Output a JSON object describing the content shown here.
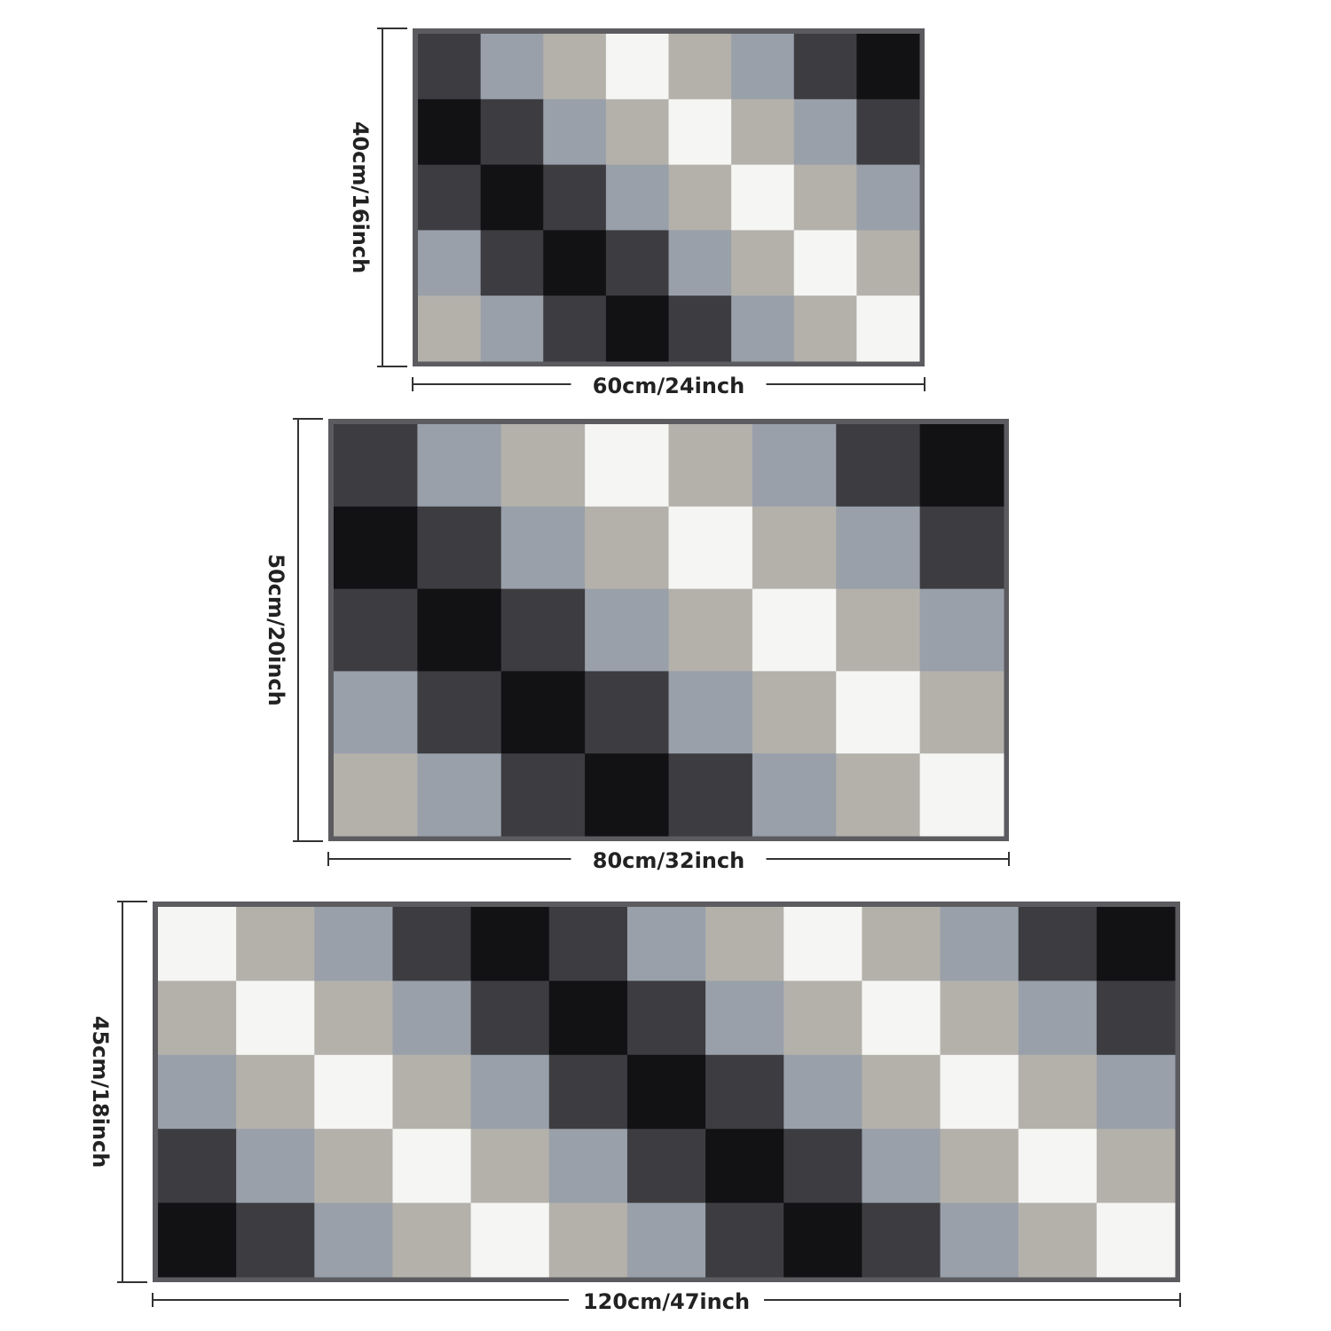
{
  "rugs": [
    {
      "height_label": "40cm/16inch",
      "width_label": "60cm/24inch"
    },
    {
      "height_label": "50cm/20inch",
      "width_label": "80cm/32inch"
    },
    {
      "height_label": "45cm/18inch",
      "width_label": "120cm/47inch"
    }
  ]
}
